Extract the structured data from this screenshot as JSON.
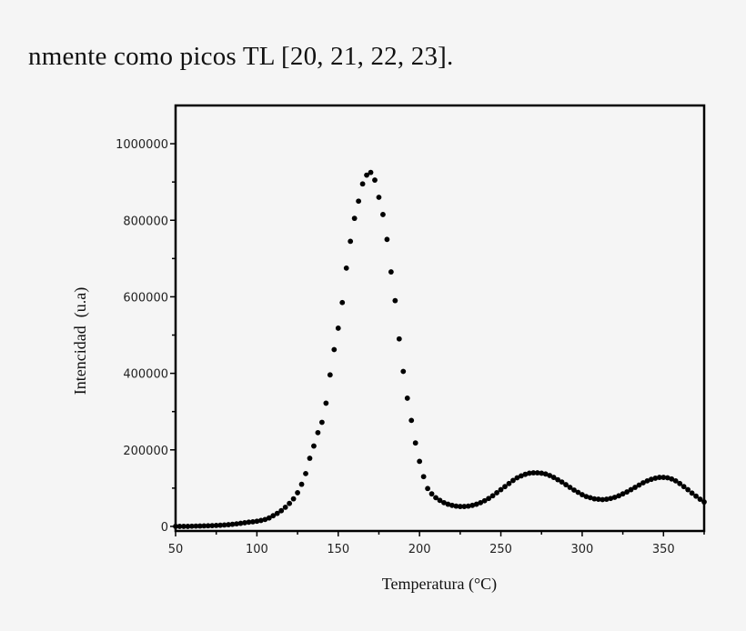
{
  "document": {
    "text_line": "nmente como picos TL [20, 21, 22, 23]."
  },
  "chart_data": {
    "type": "scatter",
    "title": "",
    "xlabel": "Temperatura (°C)",
    "ylabel": "Intencidad  (u.a)",
    "xlim": [
      50,
      375
    ],
    "ylim": [
      -12000,
      1100000
    ],
    "xticks": [
      50,
      100,
      150,
      200,
      250,
      300,
      350
    ],
    "xtick_labels": [
      "50",
      "100",
      "150",
      "200",
      "250",
      "300",
      "350"
    ],
    "yticks": [
      0,
      200000,
      400000,
      600000,
      800000,
      1000000
    ],
    "ytick_labels": [
      "0",
      "200000",
      "400000",
      "600000",
      "800000",
      "1000000"
    ],
    "grid": false,
    "marker_color": "#000000",
    "x": [
      50,
      52.5,
      55,
      57.5,
      60,
      62.5,
      65,
      67.5,
      70,
      72.5,
      75,
      77.5,
      80,
      82.5,
      85,
      87.5,
      90,
      92.5,
      95,
      97.5,
      100,
      102.5,
      105,
      107.5,
      110,
      112.5,
      115,
      117.5,
      120,
      122.5,
      125,
      127.5,
      130,
      132.5,
      135,
      137.5,
      140,
      142.5,
      145,
      147.5,
      150,
      152.5,
      155,
      157.5,
      160,
      162.5,
      165,
      167.5,
      170,
      172.5,
      175,
      177.5,
      180,
      182.5,
      185,
      187.5,
      190,
      192.5,
      195,
      197.5,
      200,
      202.5,
      205,
      207.5,
      210,
      212.5,
      215,
      217.5,
      220,
      222.5,
      225,
      227.5,
      230,
      232.5,
      235,
      237.5,
      240,
      242.5,
      245,
      247.5,
      250,
      252.5,
      255,
      257.5,
      260,
      262.5,
      265,
      267.5,
      270,
      272.5,
      275,
      277.5,
      280,
      282.5,
      285,
      287.5,
      290,
      292.5,
      295,
      297.5,
      300,
      302.5,
      305,
      307.5,
      310,
      312.5,
      315,
      317.5,
      320,
      322.5,
      325,
      327.5,
      330,
      332.5,
      335,
      337.5,
      340,
      342.5,
      345,
      347.5,
      350,
      352.5,
      355,
      357.5,
      360,
      362.5,
      365,
      367.5,
      370,
      372.5,
      375
    ],
    "y": [
      0,
      0,
      0,
      0,
      500,
      800,
      1000,
      1300,
      1600,
      2000,
      2500,
      3000,
      3700,
      4500,
      5500,
      6700,
      8000,
      9500,
      11000,
      12000,
      13500,
      15500,
      18000,
      22000,
      28000,
      34000,
      41000,
      50000,
      60000,
      72000,
      88000,
      110000,
      138000,
      178000,
      210000,
      245000,
      272000,
      322000,
      396000,
      462000,
      518000,
      585000,
      675000,
      745000,
      805000,
      850000,
      895000,
      918000,
      925000,
      905000,
      860000,
      815000,
      750000,
      665000,
      590000,
      490000,
      405000,
      335000,
      277000,
      218000,
      170000,
      130000,
      99000,
      85000,
      75000,
      68000,
      62000,
      58000,
      55000,
      53000,
      52000,
      52000,
      53000,
      55000,
      58000,
      62000,
      67000,
      73000,
      80000,
      88000,
      96000,
      104000,
      112000,
      120000,
      127000,
      132000,
      136000,
      139000,
      140000,
      140000,
      139000,
      137000,
      133000,
      128000,
      122000,
      116000,
      109000,
      102000,
      95000,
      89000,
      83000,
      78000,
      75000,
      72000,
      71000,
      70000,
      71000,
      73000,
      76000,
      80000,
      85000,
      90000,
      96000,
      102000,
      108000,
      114000,
      119000,
      123000,
      126000,
      128000,
      128000,
      127000,
      124000,
      119000,
      112000,
      104000,
      96000,
      87000,
      79000,
      71000,
      64000
    ]
  }
}
